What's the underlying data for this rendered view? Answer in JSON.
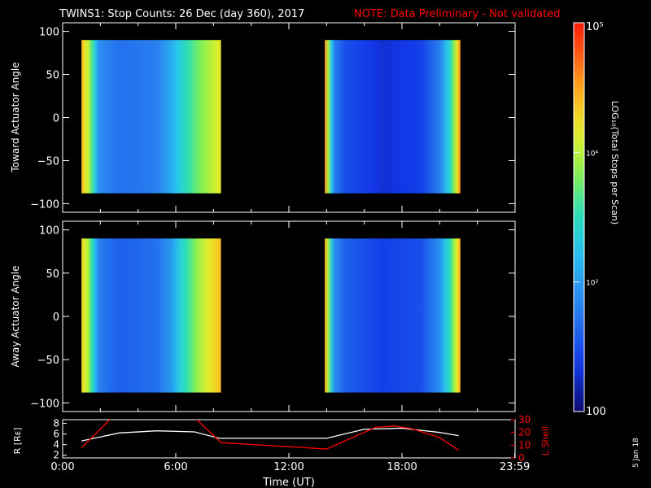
{
  "title": {
    "main": "TWINS1: Stop Counts: 26 Dec (day 360), 2017",
    "note": "NOTE: Data Preliminary - Not validated"
  },
  "colors": {
    "background": "#000000",
    "foreground": "#ffffff",
    "note": "#ff0000",
    "lshell": "#ff0000",
    "radius": "#ffffff"
  },
  "colorbar": {
    "label": "LOG₁₀(Total Stops per Scan)",
    "tick_labels": [
      "100",
      "10³",
      "10⁴",
      "10⁵"
    ],
    "tick_values": [
      100,
      1000,
      10000,
      100000
    ],
    "range": [
      100,
      100000
    ],
    "scale": "log",
    "colormap": "rainbow"
  },
  "footer_date": "5 Jan 18",
  "chart_data": [
    {
      "type": "heatmap",
      "ylabel": "Toward Actuator Angle",
      "x_unit": "hours UT",
      "xlim": [
        0,
        24
      ],
      "ylim": [
        -110,
        110
      ],
      "yticks": [
        -100,
        -50,
        0,
        50,
        100
      ],
      "y_tick_labels": [
        "−100",
        "−50",
        "0",
        "50",
        "100"
      ],
      "data_y_range": [
        -88,
        90
      ],
      "segments": [
        {
          "x_start": 1.0,
          "x_end": 8.4,
          "profile_hours": [
            1.0,
            1.4,
            1.9,
            3.0,
            5.0,
            5.8,
            6.3,
            7.0,
            7.6,
            8.4
          ],
          "profile_log_counts": [
            4.4,
            4.0,
            2.9,
            2.7,
            2.8,
            3.1,
            3.4,
            3.7,
            3.9,
            4.2
          ]
        },
        {
          "x_start": 13.9,
          "x_end": 21.1,
          "profile_hours": [
            13.9,
            14.4,
            15.0,
            17.0,
            19.0,
            20.0,
            20.6,
            21.1
          ],
          "profile_log_counts": [
            4.6,
            2.8,
            2.5,
            2.3,
            2.4,
            2.8,
            3.5,
            4.6
          ]
        }
      ]
    },
    {
      "type": "heatmap",
      "ylabel": "Away Actuator Angle",
      "x_unit": "hours UT",
      "xlim": [
        0,
        24
      ],
      "ylim": [
        -110,
        110
      ],
      "yticks": [
        -100,
        -50,
        0,
        50,
        100
      ],
      "y_tick_labels": [
        "−100",
        "−50",
        "0",
        "50",
        "100"
      ],
      "data_y_range": [
        -88,
        90
      ],
      "segments": [
        {
          "x_start": 1.0,
          "x_end": 8.4,
          "profile_hours": [
            1.0,
            1.4,
            1.9,
            3.0,
            5.0,
            5.8,
            6.3,
            7.0,
            7.6,
            8.4
          ],
          "profile_log_counts": [
            4.3,
            3.9,
            2.8,
            2.6,
            2.7,
            3.0,
            3.4,
            3.8,
            4.1,
            4.4
          ]
        },
        {
          "x_start": 13.9,
          "x_end": 21.1,
          "profile_hours": [
            13.9,
            14.4,
            15.0,
            17.0,
            19.0,
            20.0,
            20.6,
            21.1
          ],
          "profile_log_counts": [
            4.5,
            2.9,
            2.6,
            2.4,
            2.5,
            2.9,
            3.6,
            4.5
          ]
        }
      ]
    },
    {
      "type": "line",
      "ylabel": "R [Rᴇ]",
      "ylabel_right": "L Shell",
      "xlabel": "Time (UT)",
      "xlim": [
        0,
        24
      ],
      "x_tick_values": [
        0,
        6,
        12,
        18,
        23.983
      ],
      "x_tick_labels": [
        "0:00",
        "6:00",
        "12:00",
        "18:00",
        "23:59"
      ],
      "ylim": [
        1.5,
        8.7
      ],
      "yticks": [
        2,
        4,
        6,
        8
      ],
      "ylim_right": [
        0,
        30
      ],
      "yticks_right": [
        0,
        10,
        20,
        30
      ],
      "series": [
        {
          "axis": "left",
          "x": [
            1.0,
            3.0,
            5.0,
            7.0,
            8.3,
            14.0,
            16.0,
            18.0,
            20.0,
            21.0
          ],
          "y": [
            4.7,
            6.2,
            6.6,
            6.4,
            5.2,
            5.2,
            6.9,
            7.1,
            6.3,
            5.7
          ]
        },
        {
          "axis": "right",
          "x": [
            1.0,
            2.5,
            2.9,
            6.9,
            8.4,
            14.0,
            16.6,
            17.6,
            18.5,
            20.0,
            21.0
          ],
          "y": [
            8,
            30,
            33,
            33,
            12,
            7,
            24,
            25,
            23,
            16,
            6
          ]
        }
      ]
    }
  ]
}
